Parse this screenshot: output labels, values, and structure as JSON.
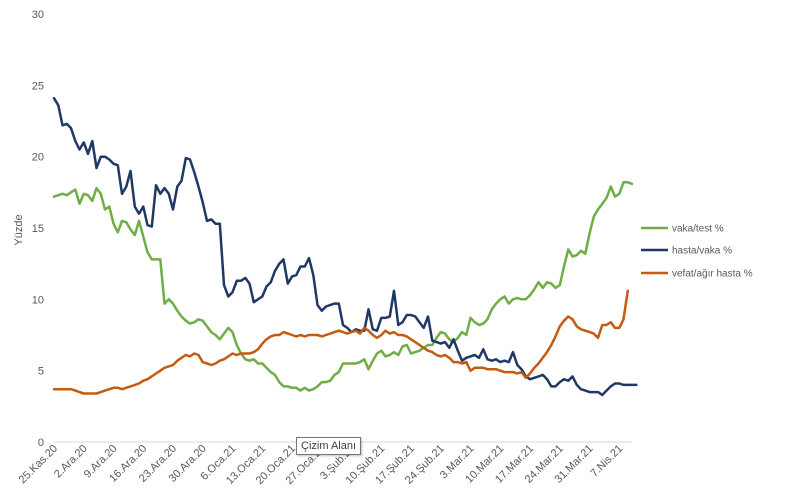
{
  "tooltip": "Çizim Alanı",
  "chart_data": {
    "type": "line",
    "title": "",
    "xlabel": "",
    "ylabel": "Yüzde",
    "ylim": [
      0,
      30
    ],
    "yticks": [
      0,
      5,
      10,
      15,
      20,
      25,
      30
    ],
    "grid": false,
    "legend_position": "right",
    "x_start": "25.Kas.20",
    "x_end": "7.Nis.21",
    "x_step_days": 1,
    "xtick_labels": [
      "25.Kas.20",
      "2.Ara.20",
      "9.Ara.20",
      "16.Ara.20",
      "23.Ara.20",
      "30.Ara.20",
      "6.Oca.21",
      "13.Oca.21",
      "20.Oca.21",
      "27.Oca.21",
      "3.Şub.21",
      "10.Şub.21",
      "17.Şub.21",
      "24.Şub.21",
      "3.Mar.21",
      "10.Mar.21",
      "17.Mar.21",
      "24.Mar.21",
      "31.Mar.21",
      "7.Nis.21"
    ],
    "series": [
      {
        "name": "vaka/test %",
        "color": "#70ad47",
        "values": [
          17.2,
          17.3,
          17.4,
          17.3,
          17.5,
          17.7,
          16.7,
          17.4,
          17.3,
          16.9,
          17.8,
          17.4,
          16.3,
          16.5,
          15.3,
          14.7,
          15.5,
          15.4,
          14.9,
          14.5,
          15.5,
          14.4,
          13.3,
          12.8,
          12.8,
          12.8,
          9.7,
          10.0,
          9.7,
          9.2,
          8.8,
          8.5,
          8.3,
          8.4,
          8.6,
          8.5,
          8.1,
          7.7,
          7.5,
          7.2,
          7.6,
          8.0,
          7.7,
          6.8,
          6.2,
          5.8,
          5.7,
          5.8,
          5.5,
          5.5,
          5.2,
          4.9,
          4.7,
          4.2,
          3.9,
          3.9,
          3.8,
          3.8,
          3.6,
          3.8,
          3.6,
          3.7,
          3.9,
          4.2,
          4.2,
          4.3,
          4.7,
          4.9,
          5.5,
          5.5,
          5.5,
          5.5,
          5.6,
          5.8,
          5.1,
          5.7,
          6.2,
          6.4,
          6.0,
          6.1,
          6.3,
          6.1,
          6.7,
          6.8,
          6.2,
          6.3,
          6.4,
          6.6,
          6.8,
          6.8,
          7.3,
          7.7,
          7.6,
          7.2,
          7.0,
          7.3,
          7.7,
          7.5,
          8.7,
          8.4,
          8.2,
          8.3,
          8.6,
          9.3,
          9.7,
          10.0,
          10.2,
          9.7,
          10.0,
          10.1,
          10.0,
          10.0,
          10.3,
          10.7,
          11.2,
          10.8,
          11.2,
          11.1,
          10.8,
          11.0,
          12.3,
          13.5,
          13.0,
          13.1,
          13.4,
          13.2,
          14.6,
          15.8,
          16.3,
          16.7,
          17.1,
          17.9,
          17.2,
          17.4,
          18.2,
          18.2,
          18.1
        ]
      },
      {
        "name": "hasta/vaka %",
        "color": "#203864",
        "values": [
          24.1,
          23.6,
          22.2,
          22.3,
          22.0,
          21.1,
          20.5,
          21.0,
          20.2,
          21.1,
          19.2,
          20.0,
          20.0,
          19.8,
          19.5,
          19.4,
          17.4,
          17.9,
          19.0,
          16.5,
          16.0,
          16.5,
          15.2,
          15.1,
          18.0,
          17.4,
          17.8,
          17.4,
          16.3,
          17.9,
          18.3,
          19.9,
          19.8,
          18.9,
          17.9,
          16.8,
          15.5,
          15.6,
          15.3,
          15.3,
          11.0,
          10.2,
          10.5,
          11.3,
          11.3,
          11.5,
          11.1,
          9.8,
          10.0,
          10.2,
          10.9,
          11.2,
          12.0,
          12.5,
          12.8,
          11.1,
          11.6,
          11.7,
          12.3,
          12.3,
          12.9,
          11.7,
          9.6,
          9.2,
          9.5,
          9.6,
          9.7,
          9.7,
          8.2,
          8.0,
          7.7,
          7.9,
          7.8,
          7.8,
          9.3,
          7.9,
          7.8,
          8.7,
          8.7,
          8.8,
          10.6,
          8.2,
          8.4,
          8.9,
          8.9,
          8.8,
          8.4,
          8.0,
          8.8,
          7.1,
          7.0,
          6.9,
          7.0,
          6.6,
          7.2,
          6.4,
          5.7,
          5.9,
          6.0,
          6.1,
          5.9,
          6.5,
          5.8,
          5.7,
          5.8,
          5.6,
          5.7,
          5.6,
          6.3,
          5.4,
          5.1,
          4.6,
          4.4,
          4.5,
          4.6,
          4.7,
          4.4,
          3.9,
          3.9,
          4.2,
          4.4,
          4.3,
          4.6,
          4.0,
          3.7,
          3.6,
          3.5,
          3.5,
          3.5,
          3.3,
          3.6,
          3.9,
          4.1,
          4.1,
          4.0,
          4.0,
          4.0,
          4.0
        ]
      },
      {
        "name": "vefat/ağır hasta %",
        "color": "#c55a11",
        "values": [
          3.7,
          3.7,
          3.7,
          3.7,
          3.7,
          3.6,
          3.5,
          3.4,
          3.4,
          3.4,
          3.4,
          3.5,
          3.6,
          3.7,
          3.8,
          3.8,
          3.7,
          3.8,
          3.9,
          4.0,
          4.1,
          4.3,
          4.4,
          4.6,
          4.8,
          5.0,
          5.2,
          5.3,
          5.4,
          5.7,
          5.9,
          6.1,
          6.0,
          6.2,
          6.1,
          5.6,
          5.5,
          5.4,
          5.5,
          5.7,
          5.8,
          6.0,
          6.2,
          6.1,
          6.2,
          6.2,
          6.2,
          6.3,
          6.5,
          6.9,
          7.2,
          7.4,
          7.5,
          7.5,
          7.7,
          7.6,
          7.5,
          7.4,
          7.5,
          7.4,
          7.5,
          7.5,
          7.5,
          7.4,
          7.5,
          7.6,
          7.7,
          7.8,
          7.7,
          7.6,
          7.7,
          7.8,
          7.6,
          8.0,
          7.8,
          7.5,
          7.3,
          7.5,
          7.8,
          7.6,
          7.7,
          7.5,
          7.5,
          7.4,
          7.2,
          7.0,
          6.8,
          6.6,
          6.4,
          6.3,
          6.1,
          6.0,
          6.1,
          5.9,
          5.6,
          5.6,
          5.5,
          5.6,
          5.0,
          5.2,
          5.2,
          5.2,
          5.1,
          5.1,
          5.1,
          5.0,
          4.9,
          4.9,
          4.9,
          4.8,
          4.9,
          4.5,
          4.8,
          5.2,
          5.5,
          5.9,
          6.3,
          6.8,
          7.4,
          8.1,
          8.5,
          8.8,
          8.6,
          8.1,
          7.9,
          7.8,
          7.7,
          7.6,
          7.3,
          8.2,
          8.2,
          8.4,
          8.0,
          8.0,
          8.6,
          10.6
        ]
      }
    ]
  }
}
